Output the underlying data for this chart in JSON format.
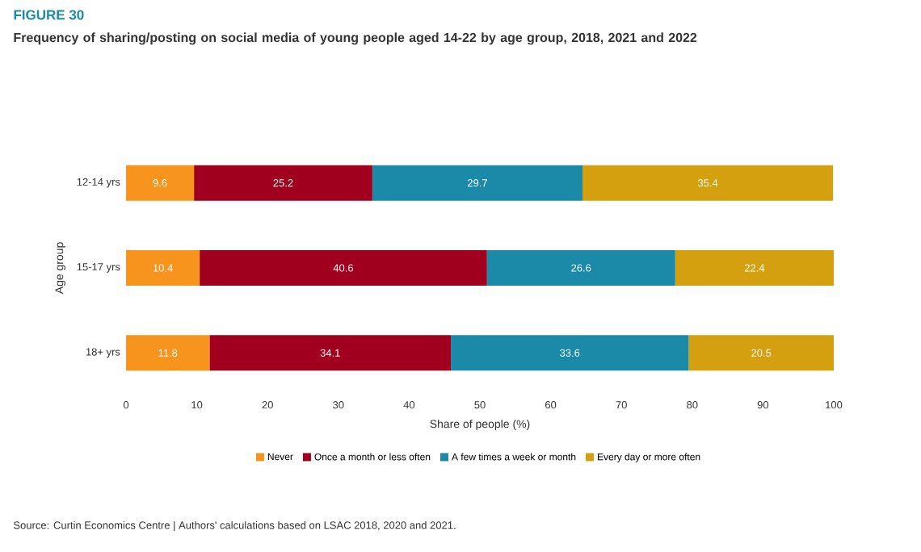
{
  "chart_data": {
    "type": "bar",
    "orientation": "horizontal",
    "stacked": true,
    "title": "FIGURE 30",
    "subtitle": "Frequency of sharing/posting on social media of young people aged 14-22 by age group, 2018, 2021 and 2022",
    "xlabel": "Share of people (%)",
    "ylabel": "Age group",
    "categories": [
      "12-14 yrs",
      "15-17 yrs",
      "18+ yrs"
    ],
    "series": [
      {
        "name": "Never",
        "color": "#f7941d",
        "values": [
          9.6,
          10.4,
          11.8
        ]
      },
      {
        "name": "Once a month or less often",
        "color": "#a0001e",
        "values": [
          25.2,
          40.6,
          34.1
        ]
      },
      {
        "name": "A few times a week or month",
        "color": "#1a8aa8",
        "values": [
          29.7,
          26.6,
          33.6
        ]
      },
      {
        "name": "Every day or more often",
        "color": "#d4a00f",
        "values": [
          35.4,
          22.4,
          20.5
        ]
      }
    ],
    "xlim": [
      0,
      100
    ],
    "xticks": [
      0,
      10,
      20,
      30,
      40,
      50,
      60,
      70,
      80,
      90,
      100
    ],
    "data_labels": true,
    "legend": "bottom",
    "grid": false,
    "annotations": [
      "Source: Curtin Economics Centre | Authors' calculations based on LSAC 2018, 2020 and 2021."
    ]
  }
}
